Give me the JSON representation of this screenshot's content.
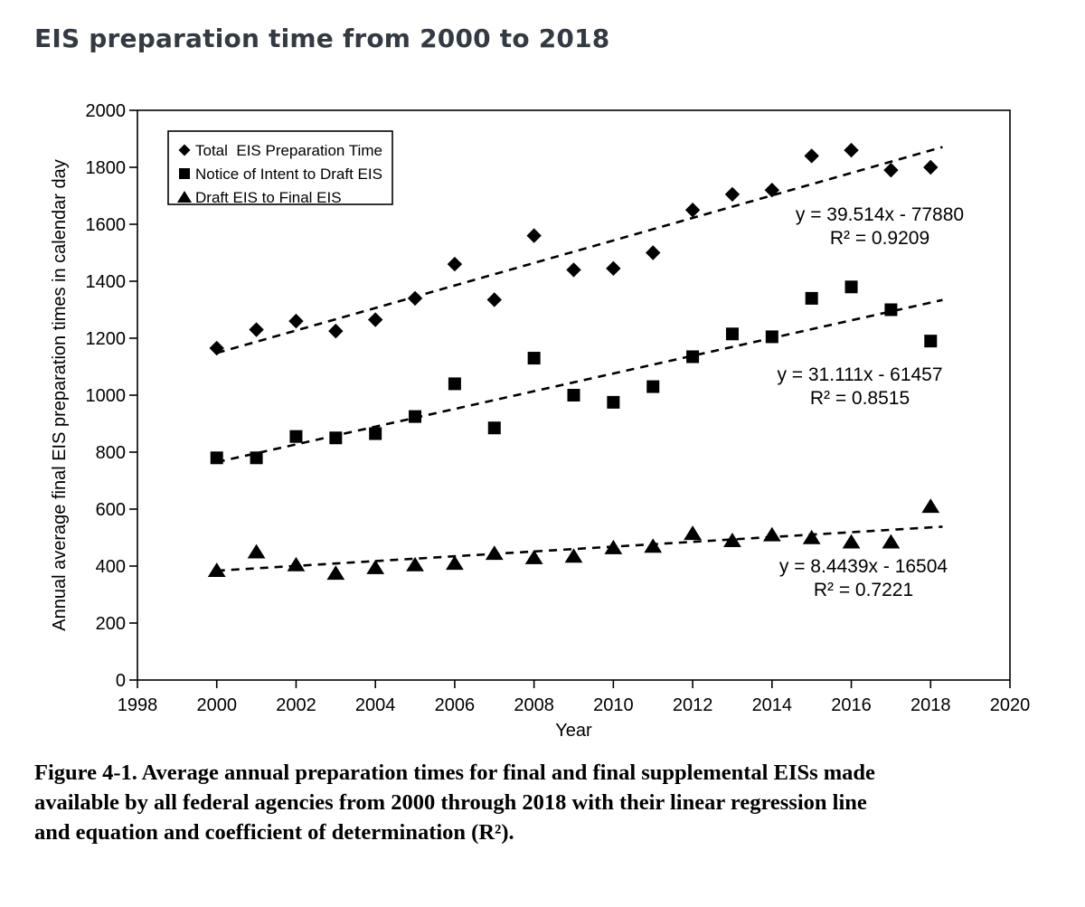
{
  "page": {
    "title": "EIS preparation time from 2000 to 2018",
    "caption_lines": [
      "Figure 4-1. Average annual preparation times for final and final supplemental EISs made",
      "available by all federal agencies from 2000 through 2018 with their linear regression line",
      "and equation and coefficient of determination (R²)."
    ]
  },
  "chart_data": {
    "type": "scatter",
    "title": "EIS preparation time from 2000 to 2018",
    "xlabel": "Year",
    "ylabel": "Annual average final EIS preparation times in calendar day",
    "xlim": [
      1998,
      2020
    ],
    "ylim": [
      0,
      2000
    ],
    "x_ticks": [
      1998,
      2000,
      2002,
      2004,
      2006,
      2008,
      2010,
      2012,
      2014,
      2016,
      2018,
      2020
    ],
    "y_ticks": [
      0,
      200,
      400,
      600,
      800,
      1000,
      1200,
      1400,
      1600,
      1800,
      2000
    ],
    "grid": false,
    "legend_position": "top-left-inside",
    "x": [
      2000,
      2001,
      2002,
      2003,
      2004,
      2005,
      2006,
      2007,
      2008,
      2009,
      2010,
      2011,
      2012,
      2013,
      2014,
      2015,
      2016,
      2017,
      2018
    ],
    "series": [
      {
        "name": "Total  EIS Preparation Time",
        "marker": "diamond",
        "values": [
          1165,
          1230,
          1260,
          1225,
          1265,
          1340,
          1460,
          1335,
          1560,
          1440,
          1445,
          1500,
          1650,
          1705,
          1720,
          1840,
          1860,
          1790,
          1800
        ],
        "trend": {
          "slope": 39.514,
          "intercept": -77880,
          "equation": "y = 39.514x - 77880",
          "r2": "R² = 0.9209"
        }
      },
      {
        "name": "Notice of Intent to Draft EIS",
        "marker": "square",
        "values": [
          780,
          780,
          855,
          850,
          865,
          925,
          1040,
          885,
          1130,
          1000,
          975,
          1030,
          1135,
          1215,
          1205,
          1340,
          1380,
          1300,
          1190
        ],
        "trend": {
          "slope": 31.111,
          "intercept": -61457,
          "equation": "y = 31.111x - 61457",
          "r2": "R² = 0.8515"
        }
      },
      {
        "name": "Draft EIS to Final EIS",
        "marker": "triangle",
        "values": [
          385,
          450,
          405,
          375,
          395,
          405,
          410,
          445,
          430,
          435,
          465,
          470,
          515,
          490,
          510,
          500,
          485,
          485,
          610
        ],
        "trend": {
          "slope": 8.4439,
          "intercept": -16504,
          "equation": "y = 8.4439x - 16504",
          "r2": "R² = 0.7221"
        }
      }
    ]
  }
}
